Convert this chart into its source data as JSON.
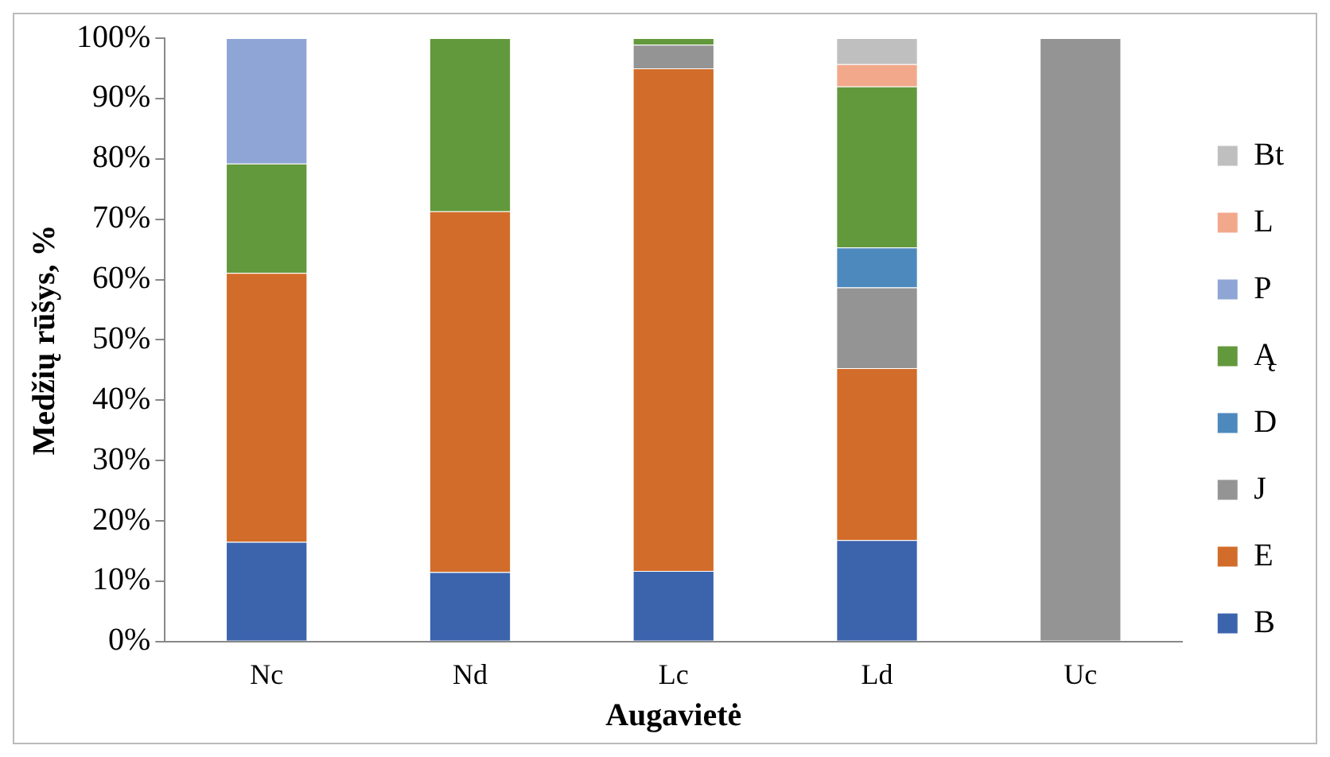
{
  "chart_data": {
    "type": "bar",
    "stacked": true,
    "xlabel": "Augavietė",
    "ylabel": "Medžių rūšys, %",
    "categories": [
      "Nc",
      "Nd",
      "Lc",
      "Ld",
      "Uc"
    ],
    "series": [
      {
        "name": "B",
        "color": "#3c64ad",
        "values": [
          16.5,
          11.5,
          11.7,
          16.8,
          null
        ]
      },
      {
        "name": "E",
        "color": "#d26c2a",
        "values": [
          44.6,
          59.8,
          83.3,
          28.5,
          null
        ]
      },
      {
        "name": "J",
        "color": "#949494",
        "values": [
          null,
          null,
          3.9,
          13.4,
          100
        ]
      },
      {
        "name": "D",
        "color": "#4e89be",
        "values": [
          null,
          null,
          null,
          6.6,
          null
        ]
      },
      {
        "name": "Ą",
        "color": "#63993d",
        "values": [
          18.1,
          28.7,
          1.1,
          26.7,
          null
        ]
      },
      {
        "name": "P",
        "color": "#8fa5d5",
        "values": [
          20.8,
          null,
          null,
          null,
          null
        ]
      },
      {
        "name": "L",
        "color": "#f2a88a",
        "values": [
          null,
          null,
          null,
          3.7,
          null
        ]
      },
      {
        "name": "Bt",
        "color": "#bfbfbf",
        "values": [
          null,
          null,
          null,
          4.3,
          null
        ]
      }
    ],
    "ylim": [
      0,
      100
    ],
    "yticks": [
      {
        "value": 0,
        "label": "0%"
      },
      {
        "value": 10,
        "label": "10%"
      },
      {
        "value": 20,
        "label": "20%"
      },
      {
        "value": 30,
        "label": "30%"
      },
      {
        "value": 40,
        "label": "40%"
      },
      {
        "value": 50,
        "label": "50%"
      },
      {
        "value": 60,
        "label": "60%"
      },
      {
        "value": 70,
        "label": "70%"
      },
      {
        "value": 80,
        "label": "80%"
      },
      {
        "value": 90,
        "label": "90%"
      },
      {
        "value": 100,
        "label": "100%"
      }
    ],
    "grid": false,
    "legend": "right"
  }
}
